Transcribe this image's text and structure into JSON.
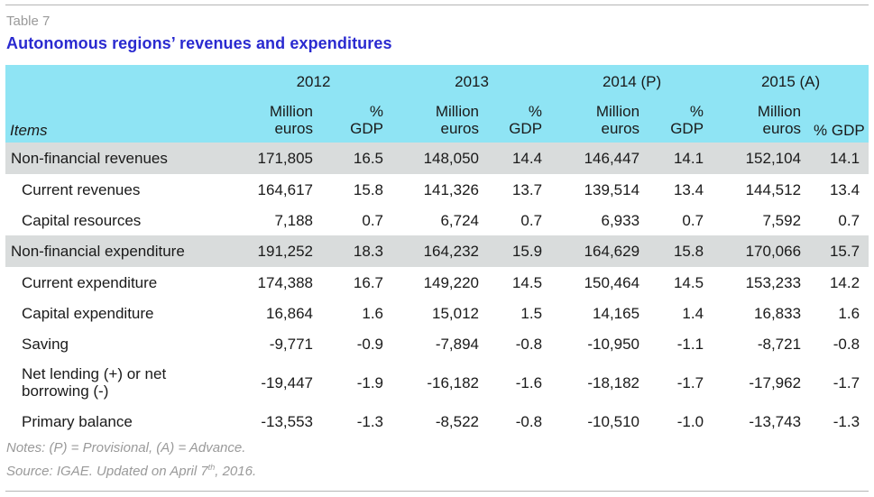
{
  "table_number": "Table 7",
  "title": "Autonomous regions’ revenues and expenditures",
  "header": {
    "items_label": "Items",
    "years": [
      "2012",
      "2013",
      "2014 (P)",
      "2015 (A)"
    ],
    "million_line1": "Million",
    "million_line2": "euros",
    "pct_line1": "%",
    "pct_line2": "GDP",
    "pct_last": "% GDP"
  },
  "rows": [
    {
      "label": "Non-financial revenues",
      "level": "main",
      "values": [
        "171,805",
        "16.5",
        "148,050",
        "14.4",
        "146,447",
        "14.1",
        "152,104",
        "14.1"
      ]
    },
    {
      "label": "Current revenues",
      "level": "sub",
      "values": [
        "164,617",
        "15.8",
        "141,326",
        "13.7",
        "139,514",
        "13.4",
        "144,512",
        "13.4"
      ]
    },
    {
      "label": "Capital resources",
      "level": "sub",
      "values": [
        "7,188",
        "0.7",
        "6,724",
        "0.7",
        "6,933",
        "0.7",
        "7,592",
        "0.7"
      ]
    },
    {
      "label": "Non-financial expenditure",
      "level": "main",
      "values": [
        "191,252",
        "18.3",
        "164,232",
        "15.9",
        "164,629",
        "15.8",
        "170,066",
        "15.7"
      ]
    },
    {
      "label": "Current expenditure",
      "level": "sub",
      "values": [
        "174,388",
        "16.7",
        "149,220",
        "14.5",
        "150,464",
        "14.5",
        "153,233",
        "14.2"
      ]
    },
    {
      "label": "Capital expenditure",
      "level": "sub",
      "values": [
        "16,864",
        "1.6",
        "15,012",
        "1.5",
        "14,165",
        "1.4",
        "16,833",
        "1.6"
      ]
    },
    {
      "label": "Saving",
      "level": "sub",
      "values": [
        "-9,771",
        "-0.9",
        "-7,894",
        "-0.8",
        "-10,950",
        "-1.1",
        "-8,721",
        "-0.8"
      ]
    },
    {
      "label": "Net lending (+) or net borrowing (-)",
      "level": "tall",
      "values": [
        "-19,447",
        "-1.9",
        "-16,182",
        "-1.6",
        "-18,182",
        "-1.7",
        "-17,962",
        "-1.7"
      ]
    },
    {
      "label": "Primary balance",
      "level": "sub",
      "values": [
        "-13,553",
        "-1.3",
        "-8,522",
        "-0.8",
        "-10,510",
        "-1.0",
        "-13,743",
        "-1.3"
      ]
    }
  ],
  "notes": "Notes: (P) = Provisional, (A) = Advance.",
  "source_prefix": "Source: IGAE. Updated on April 7",
  "source_sup": "th",
  "source_suffix": ", 2016.",
  "colors": {
    "header_bg": "#8fe4f4",
    "main_row_bg": "#d9dcdc",
    "title": "#2a2ad0",
    "muted_text": "#9a9a9a"
  }
}
